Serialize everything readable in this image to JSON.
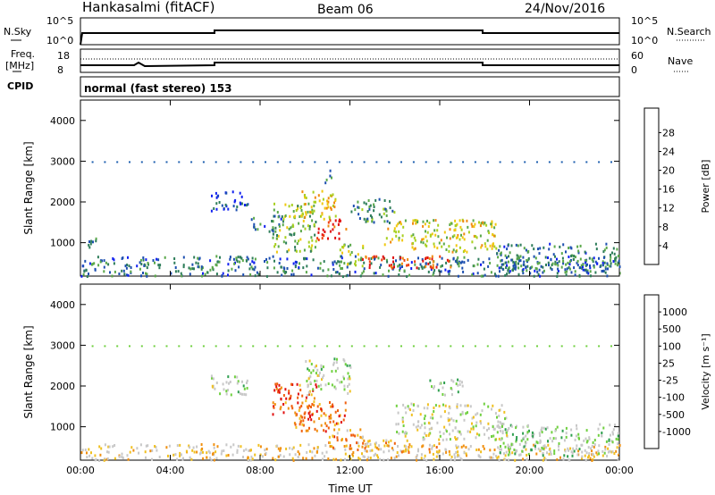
{
  "header": {
    "site": "Hankasalmi (fitACF)",
    "beam": "Beam 06",
    "date": "24/Nov/2016"
  },
  "strip1": {
    "left_label": "N.Sky",
    "right_label": "N.Search",
    "left_ticks": [
      "10^5",
      "10^0"
    ],
    "right_ticks": [
      "10^5",
      "10^0"
    ]
  },
  "strip2": {
    "left_label_1": "Freq.",
    "left_label_2": "[MHz]",
    "right_label": "Nave",
    "left_ticks": [
      "18",
      "8"
    ],
    "right_ticks": [
      "60",
      "0"
    ]
  },
  "cpid": {
    "label": "CPID",
    "value": "normal (fast stereo) 153"
  },
  "chart_data": [
    {
      "type": "heatmap",
      "title": "",
      "xlabel": "",
      "ylabel": "Slant Range [km]",
      "xlim": [
        0,
        24
      ],
      "ylim": [
        180,
        4500
      ],
      "yticks": [
        "1000",
        "2000",
        "3000",
        "4000"
      ],
      "colorbar": {
        "label": "Power [dB]",
        "ticks": [
          "4",
          "8",
          "12",
          "16",
          "20",
          "24",
          "28"
        ],
        "colors": [
          "#1020f0",
          "#1d4fb0",
          "#2e7d5a",
          "#5aa84a",
          "#a8d020",
          "#f0c810",
          "#f08a10",
          "#f04010",
          "#e01010"
        ]
      },
      "regions": [
        {
          "t0": 0.0,
          "t1": 24.0,
          "r0": 200,
          "r1": 700,
          "level": 0.25
        },
        {
          "t0": 0.0,
          "t1": 0.8,
          "r0": 900,
          "r1": 1150,
          "level": 0.2
        },
        {
          "t0": 5.8,
          "t1": 7.5,
          "r0": 1800,
          "r1": 2300,
          "level": 0.15
        },
        {
          "t0": 7.5,
          "t1": 9.0,
          "r0": 1300,
          "r1": 1700,
          "level": 0.25
        },
        {
          "t0": 8.5,
          "t1": 10.5,
          "r0": 800,
          "r1": 2000,
          "level": 0.45
        },
        {
          "t0": 9.8,
          "t1": 11.5,
          "r0": 1600,
          "r1": 2300,
          "level": 0.6
        },
        {
          "t0": 10.5,
          "t1": 11.8,
          "r0": 1100,
          "r1": 1600,
          "level": 0.9
        },
        {
          "t0": 10.8,
          "t1": 11.2,
          "r0": 2500,
          "r1": 2800,
          "level": 0.3
        },
        {
          "t0": 11.5,
          "t1": 12.6,
          "r0": 450,
          "r1": 1000,
          "level": 0.45
        },
        {
          "t0": 12.5,
          "t1": 16.5,
          "r0": 400,
          "r1": 700,
          "level": 0.85
        },
        {
          "t0": 13.5,
          "t1": 18.5,
          "r0": 800,
          "r1": 1600,
          "level": 0.55
        },
        {
          "t0": 12.0,
          "t1": 14.0,
          "r0": 1500,
          "r1": 2100,
          "level": 0.3
        },
        {
          "t0": 18.5,
          "t1": 24.0,
          "r0": 300,
          "r1": 1000,
          "level": 0.25
        }
      ],
      "dotted_line_range_km": 3000
    },
    {
      "type": "heatmap",
      "title": "",
      "xlabel": "Time UT",
      "ylabel": "Slant Range [km]",
      "xlim": [
        0,
        24
      ],
      "ylim": [
        180,
        4500
      ],
      "xticks": [
        "00:00",
        "04:00",
        "08:00",
        "12:00",
        "16:00",
        "20:00",
        "00:00"
      ],
      "yticks": [
        "1000",
        "2000",
        "3000",
        "4000"
      ],
      "colorbar": {
        "label": "Velocity [m s⁻¹]",
        "ticks": [
          "1000",
          "500",
          "100",
          "25",
          "-25",
          "-100",
          "-500",
          "-1000"
        ],
        "colors": [
          "#2030c0",
          "#2f6fb0",
          "#30a050",
          "#70d040",
          "#c8c8c8",
          "#c8c8c8",
          "#f0c020",
          "#f09010",
          "#f06010",
          "#e01010"
        ]
      },
      "regions": [
        {
          "t0": 0.0,
          "t1": 24.0,
          "r0": 200,
          "r1": 600,
          "level": 0.6
        },
        {
          "t0": 5.8,
          "t1": 7.5,
          "r0": 1800,
          "r1": 2300,
          "level": 0.45
        },
        {
          "t0": 8.5,
          "t1": 10.5,
          "r0": 1300,
          "r1": 2100,
          "level": 0.85
        },
        {
          "t0": 9.5,
          "t1": 11.8,
          "r0": 900,
          "r1": 1700,
          "level": 0.8
        },
        {
          "t0": 11.0,
          "t1": 12.6,
          "r0": 450,
          "r1": 1000,
          "level": 0.75
        },
        {
          "t0": 10.0,
          "t1": 12.0,
          "r0": 1800,
          "r1": 2700,
          "level": 0.45
        },
        {
          "t0": 12.5,
          "t1": 16.0,
          "r0": 400,
          "r1": 700,
          "level": 0.72
        },
        {
          "t0": 14.0,
          "t1": 19.0,
          "r0": 700,
          "r1": 1600,
          "level": 0.5
        },
        {
          "t0": 15.5,
          "t1": 17.0,
          "r0": 1800,
          "r1": 2200,
          "level": 0.4
        },
        {
          "t0": 18.5,
          "t1": 24.0,
          "r0": 300,
          "r1": 1100,
          "level": 0.42
        }
      ],
      "dotted_line_range_km": 3000
    }
  ]
}
